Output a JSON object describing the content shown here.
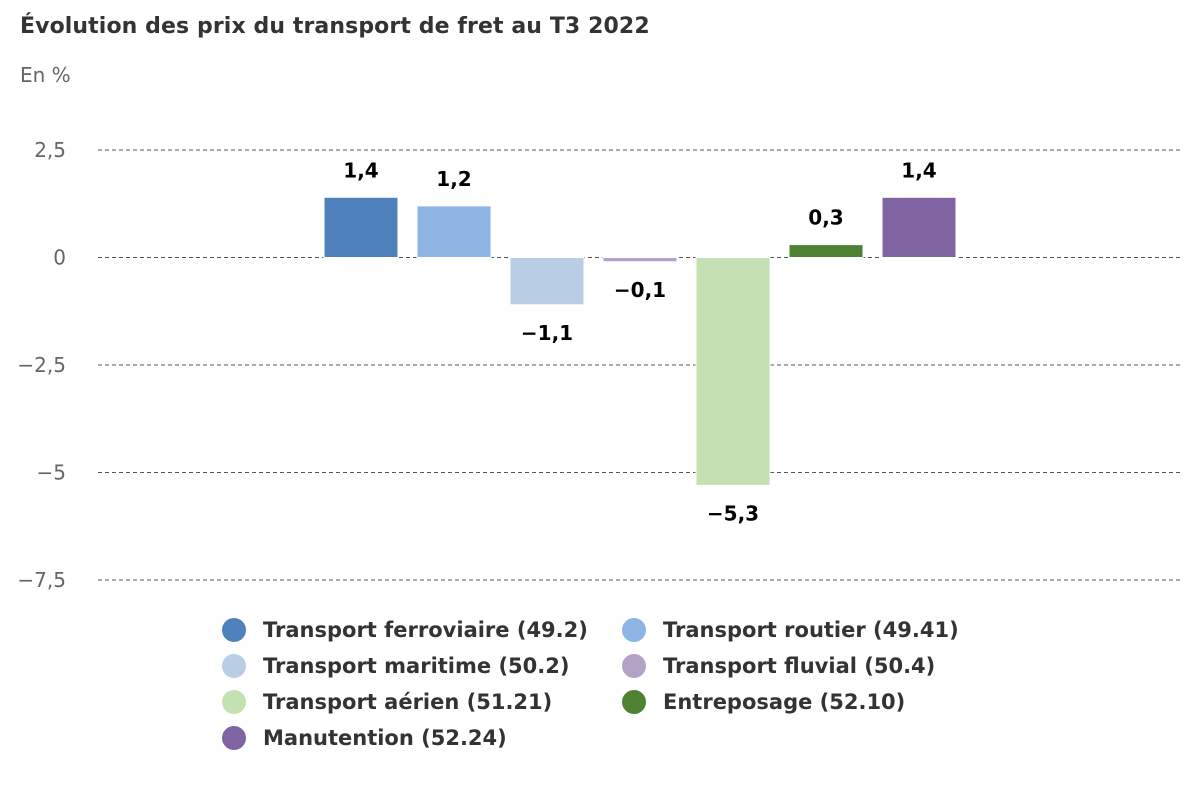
{
  "title": "Évolution des prix du transport de fret au T3 2022",
  "unit_label": "En %",
  "chart_data": {
    "type": "bar",
    "title": "Évolution des prix du transport de fret au T3 2022",
    "ylabel": "En %",
    "ylim": [
      -7.5,
      2.5
    ],
    "yticks": [
      2.5,
      0,
      -2.5,
      -5,
      -7.5
    ],
    "ytick_labels": [
      "2,5",
      "0",
      "−2,5",
      "−5",
      "−7,5"
    ],
    "grid": true,
    "legend_position": "bottom",
    "series": [
      {
        "name": "Transport ferroviaire (49.2)",
        "value": 1.4,
        "label": "1,4",
        "color": "#4f81bd"
      },
      {
        "name": "Transport routier (49.41)",
        "value": 1.2,
        "label": "1,2",
        "color": "#8eb4e3"
      },
      {
        "name": "Transport maritime (50.2)",
        "value": -1.1,
        "label": "−1,1",
        "color": "#b9cde5"
      },
      {
        "name": "Transport fluvial (50.4)",
        "value": -0.1,
        "label": "−0,1",
        "color": "#b3a2c7"
      },
      {
        "name": "Transport aérien (51.21)",
        "value": -5.3,
        "label": "−5,3",
        "color": "#c4e1b4"
      },
      {
        "name": "Entreposage (52.10)",
        "value": 0.3,
        "label": "0,3",
        "color": "#4f8135"
      },
      {
        "name": "Manutention (52.24)",
        "value": 1.4,
        "label": "1,4",
        "color": "#8064a2"
      }
    ]
  }
}
